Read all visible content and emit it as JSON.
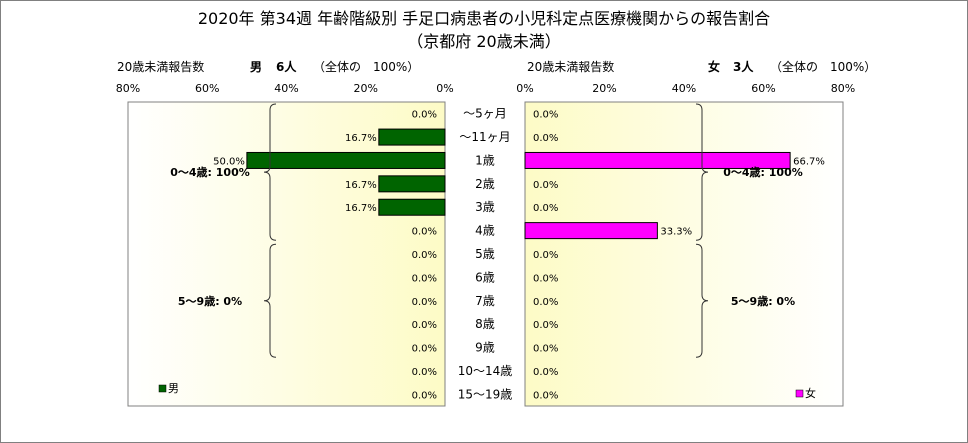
{
  "chart_data": {
    "type": "bar",
    "orientation": "horizontal",
    "title": "2020年 第34週 年齢階級別 手足口病患者の小児科定点医療機関からの報告割合",
    "subtitle": "（京都府 20歳未満）",
    "categories": [
      "～5ヶ月",
      "～11ヶ月",
      "1歳",
      "2歳",
      "3歳",
      "4歳",
      "5歳",
      "6歳",
      "7歳",
      "8歳",
      "9歳",
      "10～14歳",
      "15～19歳"
    ],
    "xlim": [
      0,
      80
    ],
    "x_ticks": [
      "80%",
      "60%",
      "40%",
      "20%",
      "0%"
    ],
    "x_ticks_right": [
      "0%",
      "20%",
      "40%",
      "60%",
      "80%"
    ],
    "grid": false,
    "panels": [
      {
        "axis_caption": "20歳未満報告数",
        "gender": "男",
        "count_label": "6人",
        "total_note": "（全体の　100%）",
        "legend": "男",
        "color": "#006400",
        "values": [
          0.0,
          16.7,
          50.0,
          16.7,
          16.7,
          0.0,
          0.0,
          0.0,
          0.0,
          0.0,
          0.0,
          0.0,
          0.0
        ],
        "labels": [
          "0.0%",
          "16.7%",
          "50.0%",
          "16.7%",
          "16.7%",
          "0.0%",
          "0.0%",
          "0.0%",
          "0.0%",
          "0.0%",
          "0.0%",
          "0.0%",
          "0.0%"
        ],
        "groups": [
          {
            "label": "0～4歳: 100%",
            "from": 0,
            "to": 5
          },
          {
            "label": "5～9歳: 0%",
            "from": 6,
            "to": 10
          }
        ]
      },
      {
        "axis_caption": "20歳未満報告数",
        "gender": "女",
        "count_label": "3人",
        "total_note": "（全体の　100%）",
        "legend": "女",
        "color": "#ff00ff",
        "values": [
          0.0,
          0.0,
          66.7,
          0.0,
          0.0,
          33.3,
          0.0,
          0.0,
          0.0,
          0.0,
          0.0,
          0.0,
          0.0
        ],
        "labels": [
          "0.0%",
          "0.0%",
          "66.7%",
          "0.0%",
          "0.0%",
          "33.3%",
          "0.0%",
          "0.0%",
          "0.0%",
          "0.0%",
          "0.0%",
          "0.0%",
          "0.0%"
        ],
        "groups": [
          {
            "label": "0～4歳: 100%",
            "from": 0,
            "to": 5
          },
          {
            "label": "5～9歳: 0%",
            "from": 6,
            "to": 10
          }
        ]
      }
    ]
  }
}
